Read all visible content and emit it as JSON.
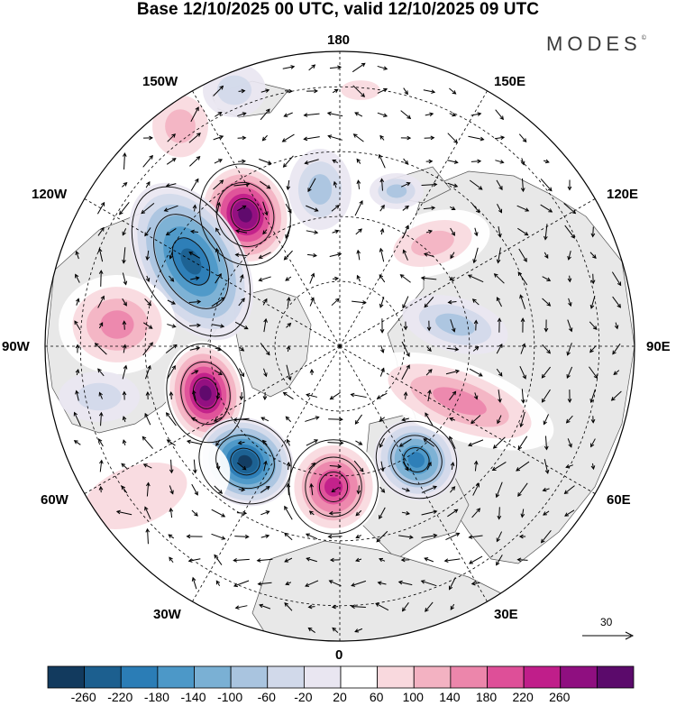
{
  "title": "Base 12/10/2025 00 UTC, valid 12/10/2025 09 UTC",
  "brand": "MODES",
  "brand_mark": "©",
  "map": {
    "projection": "north-polar-stereographic",
    "center_latitude": 90,
    "longitude_labels": [
      {
        "id": "lon-180",
        "text": "180"
      },
      {
        "id": "lon-150e",
        "text": "150E"
      },
      {
        "id": "lon-120e",
        "text": "120E"
      },
      {
        "id": "lon-90e",
        "text": "90E"
      },
      {
        "id": "lon-60e",
        "text": "60E"
      },
      {
        "id": "lon-30e",
        "text": "30E"
      },
      {
        "id": "lon-0",
        "text": "0"
      },
      {
        "id": "lon-30w",
        "text": "30W"
      },
      {
        "id": "lon-60w",
        "text": "60W"
      },
      {
        "id": "lon-90w",
        "text": "90W"
      },
      {
        "id": "lon-120w",
        "text": "120W"
      },
      {
        "id": "lon-150w",
        "text": "150W"
      }
    ],
    "reference_vector": "30",
    "colors": {
      "land": "#e8e8e8",
      "ocean": "#ffffff",
      "coast": "#555555",
      "grid": "#000000",
      "arrow": "#000000"
    }
  },
  "colorbar": {
    "ticks": [
      "-260",
      "-220",
      "-180",
      "-140",
      "-100",
      "-60",
      "-20",
      "20",
      "60",
      "100",
      "140",
      "180",
      "220",
      "260"
    ],
    "colors": [
      "#123a5e",
      "#1c5f8f",
      "#2b7db6",
      "#4c98c8",
      "#7ab0d4",
      "#a9c4df",
      "#d1d9ea",
      "#e9e6f1",
      "#ffffff",
      "#f9d9de",
      "#f3b2c2",
      "#ec86ab",
      "#de4f98",
      "#c01e8a",
      "#8f0f80",
      "#5b0a6b"
    ]
  }
}
